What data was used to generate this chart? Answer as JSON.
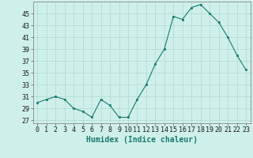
{
  "x": [
    0,
    1,
    2,
    3,
    4,
    5,
    6,
    7,
    8,
    9,
    10,
    11,
    12,
    13,
    14,
    15,
    16,
    17,
    18,
    19,
    20,
    21,
    22,
    23
  ],
  "y": [
    30,
    30.5,
    31,
    30.5,
    29,
    28.5,
    27.5,
    30.5,
    29.5,
    27.5,
    27.5,
    30.5,
    33,
    36.5,
    39,
    44.5,
    44,
    46,
    46.5,
    45,
    43.5,
    41,
    38,
    35.5
  ],
  "line_color": "#1a7a6e",
  "marker_color": "#1a7a6e",
  "bg_color": "#cff0ea",
  "grid_color": "#b0d8d0",
  "xlabel": "Humidex (Indice chaleur)",
  "ylabel": "",
  "yticks": [
    27,
    29,
    31,
    33,
    35,
    37,
    39,
    41,
    43,
    45
  ],
  "ylim": [
    26.5,
    47
  ],
  "xlim": [
    -0.5,
    23.5
  ],
  "xticks": [
    0,
    1,
    2,
    3,
    4,
    5,
    6,
    7,
    8,
    9,
    10,
    11,
    12,
    13,
    14,
    15,
    16,
    17,
    18,
    19,
    20,
    21,
    22,
    23
  ],
  "tick_fontsize": 6,
  "label_fontsize": 7
}
